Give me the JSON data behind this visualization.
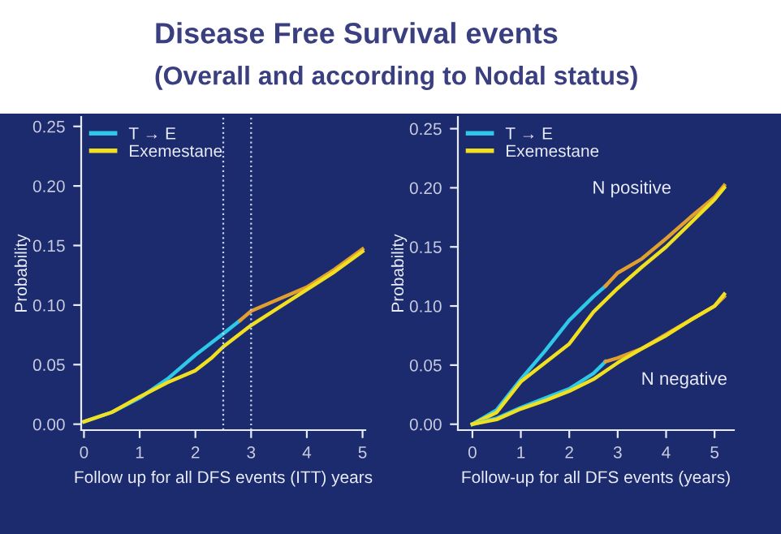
{
  "chart_data": [
    {
      "type": "line",
      "title": "Disease Free Survival events",
      "subtitle": "(Overall and according to Nodal status)",
      "xlabel": "Follow up for all DFS events (ITT) years",
      "ylabel": "Probability",
      "xlim": [
        -0.05,
        5.05
      ],
      "ylim": [
        -0.005,
        0.258
      ],
      "xticks": [
        0,
        1,
        2,
        3,
        4,
        5
      ],
      "yticks": [
        {
          "value": 0,
          "label": "0.00"
        },
        {
          "value": 0.05,
          "label": "0.05"
        },
        {
          "value": 0.1,
          "label": "0.10"
        },
        {
          "value": 0.15,
          "label": "0.15"
        },
        {
          "value": 0.2,
          "label": "0.20"
        },
        {
          "value": 0.25,
          "label": "0.25"
        }
      ],
      "grid": false,
      "legend": "top left",
      "ref_lines": [
        {
          "axis": "x",
          "value": 2.5,
          "color": "#c8d0f0",
          "line_style": "dotted"
        },
        {
          "axis": "x",
          "value": 3,
          "color": "#c8d0f0",
          "line_style": "dotted"
        }
      ],
      "series": [
        {
          "name": "T → E",
          "color": "#2ec8e8",
          "x": [
            0,
            0.5,
            1,
            1.5,
            2,
            2.5,
            2.8
          ],
          "values": [
            0.002,
            0.01,
            0.022,
            0.038,
            0.058,
            0.076,
            0.087
          ]
        },
        {
          "color": "#e0a030",
          "x": [
            2.8,
            3,
            3.5,
            4,
            4.5,
            5
          ],
          "values": [
            0.087,
            0.095,
            0.105,
            0.115,
            0.13,
            0.147
          ]
        },
        {
          "name": "Exemestane",
          "color": "#f0e020",
          "x": [
            0,
            0.5,
            1,
            1.5,
            2,
            2.3,
            2.5,
            3,
            3.5,
            4,
            4.5,
            5
          ],
          "values": [
            0.002,
            0.01,
            0.023,
            0.035,
            0.045,
            0.056,
            0.065,
            0.083,
            0.098,
            0.113,
            0.128,
            0.145
          ]
        }
      ]
    },
    {
      "type": "line",
      "xlabel": "Follow-up for all DFS events (years)",
      "ylabel": "Probability",
      "xlim": [
        -0.3,
        5.4
      ],
      "ylim": [
        -0.005,
        0.26
      ],
      "xticks": [
        0,
        1,
        2,
        3,
        4,
        5
      ],
      "yticks": [
        {
          "value": 0,
          "label": "0.00"
        },
        {
          "value": 0.05,
          "label": "0.05"
        },
        {
          "value": 0.1,
          "label": "0.10"
        },
        {
          "value": 0.15,
          "label": "0.15"
        },
        {
          "value": 0.2,
          "label": "0.20"
        },
        {
          "value": 0.25,
          "label": "0.25"
        }
      ],
      "grid": false,
      "legend": "top left",
      "annotations": [
        "N positive",
        "N negative"
      ],
      "series": [
        {
          "name": "T → E",
          "color": "#2ec8e8",
          "x": [
            0,
            0.5,
            1,
            1.5,
            2,
            2.5,
            2.75
          ],
          "values": [
            0,
            0.012,
            0.038,
            0.062,
            0.088,
            0.108,
            0.117
          ]
        },
        {
          "color": "#e0a030",
          "x": [
            2.75,
            3,
            3.5,
            4,
            4.5,
            5,
            5.2
          ],
          "values": [
            0.117,
            0.128,
            0.14,
            0.157,
            0.175,
            0.192,
            0.202
          ]
        },
        {
          "name": "Exemestane",
          "color": "#f0e020",
          "x": [
            0,
            0.5,
            1,
            1.5,
            2,
            2.5,
            3,
            3.5,
            4,
            4.5,
            5,
            5.2
          ],
          "values": [
            0,
            0.01,
            0.036,
            0.052,
            0.068,
            0.095,
            0.115,
            0.133,
            0.15,
            0.17,
            0.19,
            0.2
          ]
        },
        {
          "color": "#2ec8e8",
          "x": [
            0,
            0.5,
            1,
            1.5,
            2,
            2.5,
            2.75
          ],
          "values": [
            0,
            0.005,
            0.014,
            0.022,
            0.03,
            0.043,
            0.053
          ]
        },
        {
          "color": "#e0a030",
          "x": [
            2.75,
            3,
            3.5,
            4,
            4.5,
            5,
            5.2
          ],
          "values": [
            0.053,
            0.056,
            0.064,
            0.076,
            0.088,
            0.1,
            0.108
          ]
        },
        {
          "color": "#f0e020",
          "x": [
            0,
            0.5,
            1,
            1.5,
            2,
            2.5,
            3,
            3.5,
            4,
            4.5,
            5,
            5.2
          ],
          "values": [
            0,
            0.004,
            0.013,
            0.02,
            0.028,
            0.038,
            0.052,
            0.064,
            0.075,
            0.088,
            0.1,
            0.11
          ]
        }
      ]
    }
  ]
}
